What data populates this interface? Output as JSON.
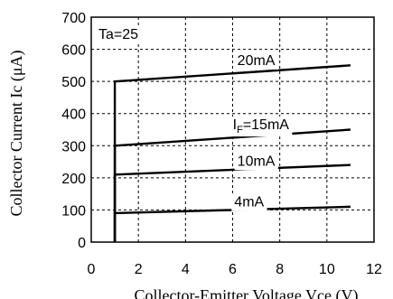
{
  "chart_data": {
    "type": "line",
    "title": "",
    "xlabel": "Collector-Emitter Voltage Vce (V)",
    "ylabel": "Collector Current Ic (μA)",
    "xlim": [
      0,
      12
    ],
    "ylim": [
      0,
      700
    ],
    "xticks": [
      0,
      2,
      4,
      6,
      8,
      10,
      12
    ],
    "yticks": [
      0,
      100,
      200,
      300,
      400,
      500,
      600,
      700
    ],
    "grid": true,
    "condition_label": "Ta=25",
    "series": [
      {
        "name": "20mA",
        "x": [
          1,
          1,
          11
        ],
        "y": [
          0,
          500,
          550
        ]
      },
      {
        "name": "15mA",
        "x": [
          1,
          1,
          11
        ],
        "y": [
          0,
          300,
          350
        ]
      },
      {
        "name": "10mA",
        "x": [
          1,
          1,
          11
        ],
        "y": [
          0,
          210,
          240
        ]
      },
      {
        "name": "4mA",
        "x": [
          1,
          1,
          11
        ],
        "y": [
          0,
          90,
          110
        ]
      }
    ],
    "annotations": [
      {
        "text": "20mA",
        "x": 7.0,
        "y": 568
      },
      {
        "prefix": "I",
        "subscript": "F",
        "text": "=15mA",
        "x": 7.2,
        "y": 368
      },
      {
        "text": "10mA",
        "x": 7.0,
        "y": 255
      },
      {
        "text": "4mA",
        "x": 6.7,
        "y": 128
      }
    ]
  }
}
